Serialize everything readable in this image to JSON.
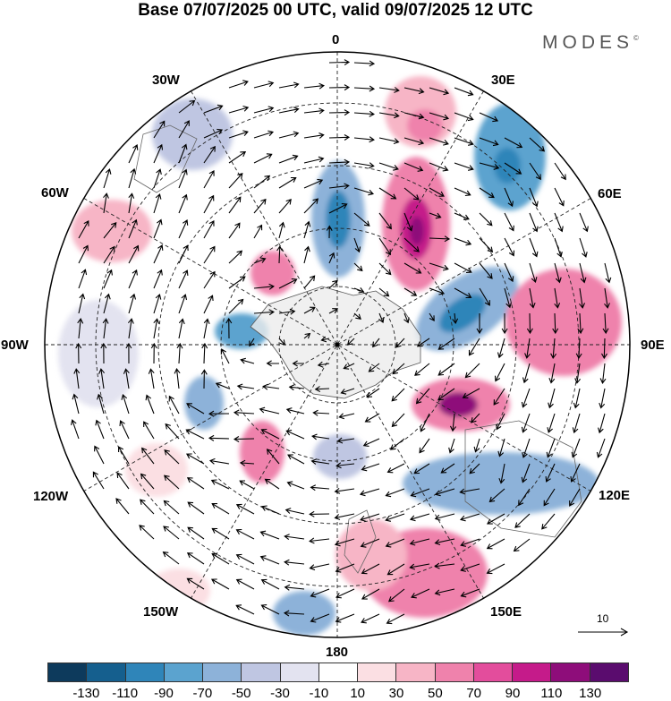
{
  "header": {
    "title": "Base 07/07/2025 00 UTC, valid 09/07/2025 12 UTC",
    "brand": "MODES",
    "brand_mark": "©"
  },
  "map": {
    "projection": "polar-stereographic-south",
    "longitude_labels": {
      "lon_0": "0",
      "lon_30e": "30E",
      "lon_60e": "60E",
      "lon_90e": "90E",
      "lon_120e": "120E",
      "lon_150e": "150E",
      "lon_180": "180",
      "lon_150w": "150W",
      "lon_120w": "120W",
      "lon_90w": "90W",
      "lon_60w": "60W",
      "lon_30w": "30W"
    },
    "reference_vector": "10"
  },
  "colorbar": {
    "colors": [
      "#0d3a5c",
      "#155f8e",
      "#2f85b9",
      "#5ba3cf",
      "#8db2d9",
      "#bfc6e2",
      "#e3e3f0",
      "#ffffff",
      "#fbdfe3",
      "#f7b5c6",
      "#ef82ac",
      "#e34d9c",
      "#c51b8a",
      "#8e0d7a",
      "#5a0c6e"
    ],
    "ticks": [
      "-130",
      "-110",
      "-90",
      "-70",
      "-50",
      "-30",
      "-10",
      "10",
      "30",
      "50",
      "70",
      "90",
      "110",
      "130"
    ]
  },
  "chart_data": {
    "type": "heatmap",
    "title": "Base 07/07/2025 00 UTC, valid 09/07/2025 12 UTC",
    "field": "anomaly shading with wind vectors",
    "color_levels": [
      -130,
      -110,
      -90,
      -70,
      -50,
      -30,
      -10,
      10,
      30,
      50,
      70,
      90,
      110,
      130
    ],
    "features": [
      {
        "region": "0-20E",
        "sign": "negative",
        "min": -90
      },
      {
        "region": "30E",
        "sign": "positive",
        "max": 110
      },
      {
        "region": "40-50E",
        "sign": "negative",
        "min": -90
      },
      {
        "region": "60E",
        "sign": "negative",
        "min": -90
      },
      {
        "region": "75-90E",
        "sign": "positive",
        "max": 70
      },
      {
        "region": "100E",
        "sign": "positive",
        "max": 110
      },
      {
        "region": "115-125E",
        "sign": "negative",
        "min": -70
      },
      {
        "region": "150-160E",
        "sign": "positive",
        "max": 70
      },
      {
        "region": "170-180W",
        "sign": "negative",
        "min": -50
      },
      {
        "region": "150W",
        "sign": "positive",
        "max": 70
      },
      {
        "region": "100W",
        "sign": "negative",
        "min": -70
      },
      {
        "region": "60-70W",
        "sign": "positive",
        "max": 50
      },
      {
        "region": "30W",
        "sign": "negative",
        "min": -50
      }
    ]
  }
}
